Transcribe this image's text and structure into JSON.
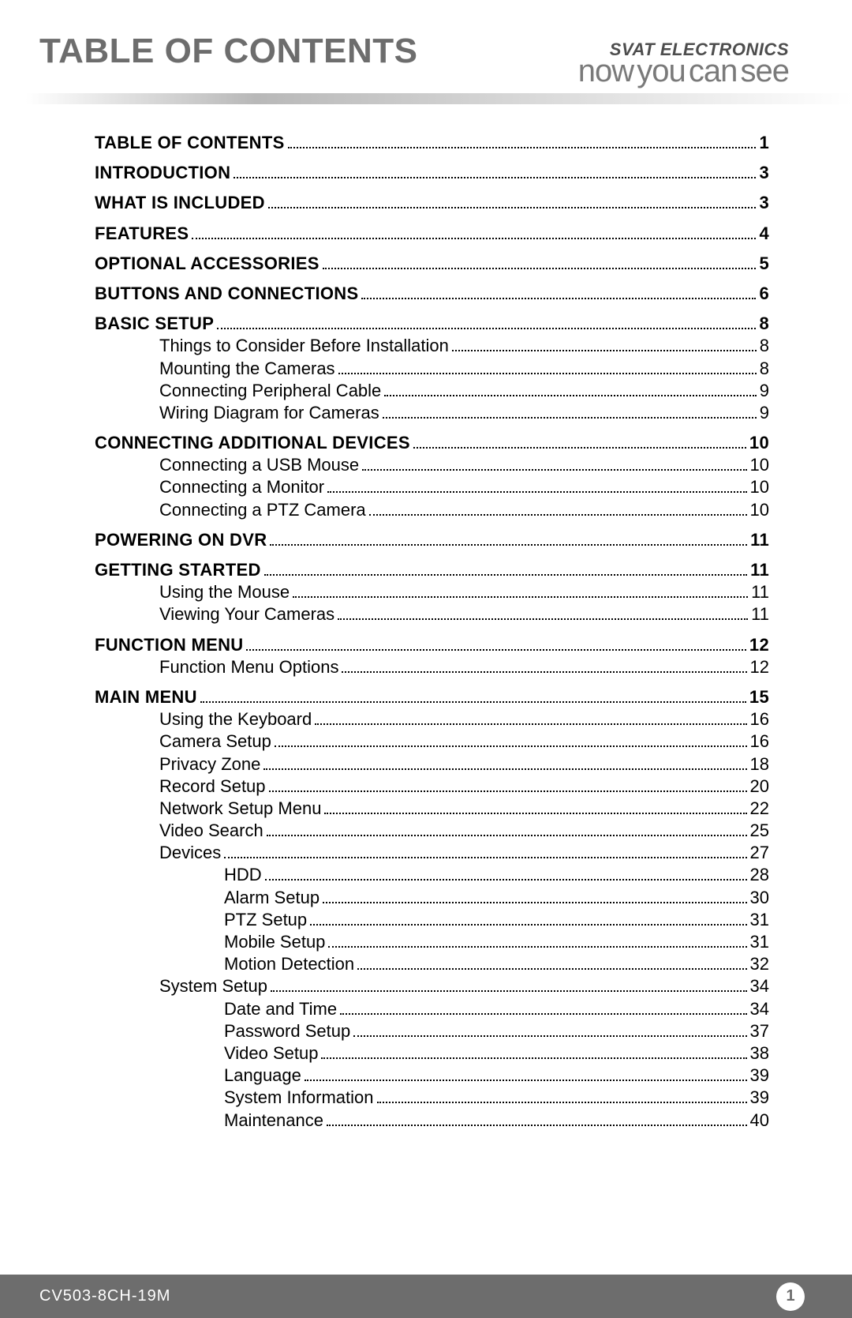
{
  "header": {
    "title": "TABLE OF CONTENTS",
    "brand_top": "SVAT ELECTRONICS",
    "brand_bottom": "now you can see"
  },
  "footer": {
    "model": "CV503-8CH-19M",
    "page_number": "1"
  },
  "colors": {
    "heading_gray": "#6d6d6d",
    "brand_gray": "#7a7a7a",
    "footer_bg": "#6d6d6d",
    "footer_text": "#ffffff",
    "text": "#000000"
  },
  "toc": [
    {
      "level": 0,
      "label": "TABLE OF CONTENTS",
      "page": "1"
    },
    {
      "level": 0,
      "label": "INTRODUCTION",
      "page": "3"
    },
    {
      "level": 0,
      "label": "WHAT IS INCLUDED",
      "page": "3"
    },
    {
      "level": 0,
      "label": "FEATURES",
      "page": "4"
    },
    {
      "level": 0,
      "label": "OPTIONAL ACCESSORIES",
      "page": "5"
    },
    {
      "level": 0,
      "label": "BUTTONS AND CONNECTIONS",
      "page": "6"
    },
    {
      "level": 0,
      "label": "BASIC SETUP",
      "page": "8"
    },
    {
      "level": 1,
      "label": "Things to Consider Before Installation",
      "page": "8"
    },
    {
      "level": 1,
      "label": "Mounting the Cameras",
      "page": "8"
    },
    {
      "level": 1,
      "label": "Connecting Peripheral Cable",
      "page": "9"
    },
    {
      "level": 1,
      "label": "Wiring Diagram for Cameras",
      "page": "9"
    },
    {
      "level": 0,
      "label": "CONNECTING ADDITIONAL DEVICES",
      "page": "10"
    },
    {
      "level": 1,
      "label": "Connecting a USB Mouse",
      "page": "10"
    },
    {
      "level": 1,
      "label": "Connecting a Monitor",
      "page": "10"
    },
    {
      "level": 1,
      "label": "Connecting a PTZ Camera",
      "page": "10"
    },
    {
      "level": 0,
      "label": "POWERING ON DVR",
      "page": "11"
    },
    {
      "level": 0,
      "label": "GETTING STARTED",
      "page": "11"
    },
    {
      "level": 1,
      "label": "Using the Mouse",
      "page": "11"
    },
    {
      "level": 1,
      "label": "Viewing Your Cameras",
      "page": "11"
    },
    {
      "level": 0,
      "label": "FUNCTION MENU",
      "page": "12"
    },
    {
      "level": 1,
      "label": "Function Menu Options",
      "page": "12"
    },
    {
      "level": 0,
      "label": "MAIN MENU",
      "page": "15"
    },
    {
      "level": 1,
      "label": "Using the Keyboard",
      "page": "16"
    },
    {
      "level": 1,
      "label": "Camera Setup",
      "page": "16"
    },
    {
      "level": 1,
      "label": "Privacy Zone",
      "page": "18"
    },
    {
      "level": 1,
      "label": "Record Setup",
      "page": "20"
    },
    {
      "level": 1,
      "label": "Network Setup Menu",
      "page": "22"
    },
    {
      "level": 1,
      "label": "Video Search",
      "page": "25"
    },
    {
      "level": 1,
      "label": "Devices",
      "page": "27"
    },
    {
      "level": 2,
      "label": "HDD",
      "page": "28"
    },
    {
      "level": 2,
      "label": "Alarm Setup",
      "page": "30"
    },
    {
      "level": 2,
      "label": "PTZ Setup",
      "page": "31"
    },
    {
      "level": 2,
      "label": "Mobile Setup",
      "page": "31"
    },
    {
      "level": 2,
      "label": "Motion Detection",
      "page": "32"
    },
    {
      "level": 1,
      "label": "System Setup",
      "page": "34"
    },
    {
      "level": 2,
      "label": "Date and Time",
      "page": "34"
    },
    {
      "level": 2,
      "label": "Password Setup",
      "page": "37"
    },
    {
      "level": 2,
      "label": "Video Setup",
      "page": "38"
    },
    {
      "level": 2,
      "label": "Language",
      "page": "39"
    },
    {
      "level": 2,
      "label": "System Information",
      "page": "39"
    },
    {
      "level": 2,
      "label": "Maintenance",
      "page": "40"
    }
  ]
}
